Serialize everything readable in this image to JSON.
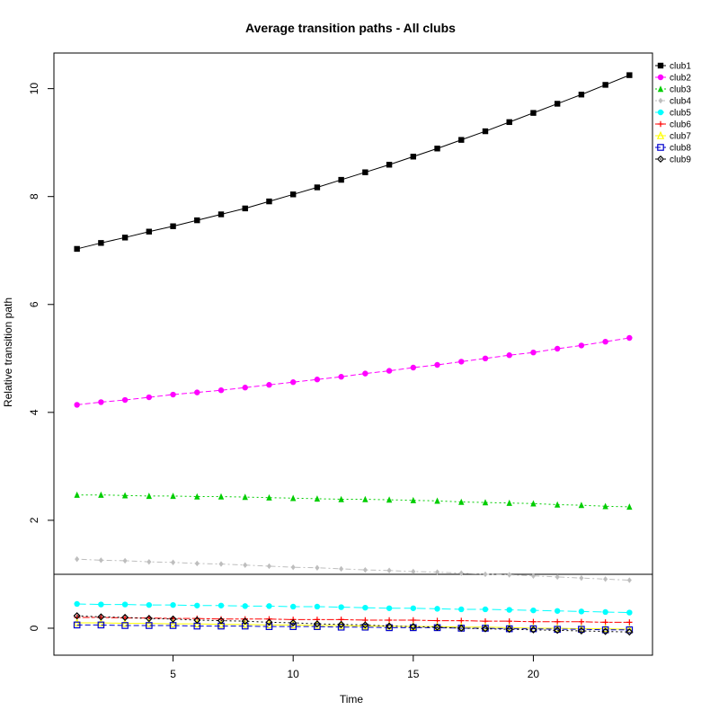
{
  "chart_data": {
    "type": "line",
    "title": "Average transition paths - All clubs",
    "xlabel": "Time",
    "ylabel": "Relative transition path",
    "x": [
      1,
      2,
      3,
      4,
      5,
      6,
      7,
      8,
      9,
      10,
      11,
      12,
      13,
      14,
      15,
      16,
      17,
      18,
      19,
      20,
      21,
      22,
      23,
      24
    ],
    "xlim": [
      0.04,
      24.96
    ],
    "ylim": [
      -0.5,
      10.66
    ],
    "xticks": [
      "5",
      "10",
      "15",
      "20"
    ],
    "yticks": [
      "0",
      "2",
      "4",
      "6",
      "8",
      "10"
    ],
    "reference_line_y": 1,
    "legend_position": "top-right",
    "series": [
      {
        "name": "club1",
        "color": "#000000",
        "marker": "square-filled",
        "dash": "solid",
        "values": [
          7.03,
          7.14,
          7.24,
          7.35,
          7.45,
          7.56,
          7.67,
          7.78,
          7.91,
          8.04,
          8.17,
          8.31,
          8.45,
          8.59,
          8.74,
          8.89,
          9.05,
          9.21,
          9.38,
          9.55,
          9.72,
          9.89,
          10.07,
          10.25
        ]
      },
      {
        "name": "club2",
        "color": "#ff00ff",
        "marker": "circle-filled",
        "dash": "dashed",
        "values": [
          4.14,
          4.19,
          4.23,
          4.28,
          4.33,
          4.37,
          4.41,
          4.46,
          4.51,
          4.56,
          4.61,
          4.66,
          4.72,
          4.77,
          4.83,
          4.88,
          4.94,
          5.0,
          5.06,
          5.11,
          5.18,
          5.24,
          5.31,
          5.38
        ]
      },
      {
        "name": "club3",
        "color": "#00cd00",
        "marker": "triangle-filled",
        "dash": "dotted",
        "values": [
          2.47,
          2.47,
          2.46,
          2.45,
          2.45,
          2.44,
          2.44,
          2.43,
          2.42,
          2.41,
          2.4,
          2.39,
          2.39,
          2.38,
          2.37,
          2.36,
          2.34,
          2.33,
          2.32,
          2.31,
          2.29,
          2.28,
          2.26,
          2.25
        ]
      },
      {
        "name": "club4",
        "color": "#bebebe",
        "marker": "diamond-filled",
        "dash": "dotdash",
        "values": [
          1.28,
          1.26,
          1.25,
          1.23,
          1.22,
          1.2,
          1.19,
          1.17,
          1.15,
          1.13,
          1.12,
          1.1,
          1.08,
          1.07,
          1.05,
          1.04,
          1.02,
          1.0,
          0.99,
          0.97,
          0.95,
          0.93,
          0.91,
          0.89
        ]
      },
      {
        "name": "club5",
        "color": "#00ffff",
        "marker": "circle-filled",
        "dash": "longdash",
        "values": [
          0.45,
          0.44,
          0.44,
          0.43,
          0.43,
          0.42,
          0.42,
          0.41,
          0.41,
          0.4,
          0.4,
          0.39,
          0.38,
          0.37,
          0.37,
          0.36,
          0.35,
          0.35,
          0.34,
          0.33,
          0.32,
          0.31,
          0.3,
          0.29
        ]
      },
      {
        "name": "club6",
        "color": "#ff0000",
        "marker": "plus",
        "dash": "twodash",
        "values": [
          0.2,
          0.2,
          0.19,
          0.19,
          0.18,
          0.18,
          0.17,
          0.17,
          0.17,
          0.16,
          0.16,
          0.16,
          0.15,
          0.15,
          0.15,
          0.14,
          0.14,
          0.13,
          0.13,
          0.12,
          0.12,
          0.12,
          0.11,
          0.11
        ]
      },
      {
        "name": "club7",
        "color": "#ffff00",
        "marker": "triangle-open",
        "dash": "solid",
        "values": [
          0.1,
          0.1,
          0.09,
          0.09,
          0.08,
          0.08,
          0.07,
          0.07,
          0.06,
          0.06,
          0.05,
          0.05,
          0.04,
          0.04,
          0.03,
          0.03,
          0.02,
          0.02,
          0.01,
          0.0,
          0.0,
          -0.01,
          -0.01,
          -0.02
        ]
      },
      {
        "name": "club8",
        "color": "#0000cd",
        "marker": "square-open",
        "dash": "dashed",
        "values": [
          0.06,
          0.06,
          0.05,
          0.05,
          0.05,
          0.04,
          0.04,
          0.04,
          0.03,
          0.03,
          0.03,
          0.02,
          0.02,
          0.01,
          0.01,
          0.01,
          0.0,
          0.0,
          -0.01,
          -0.01,
          -0.02,
          -0.02,
          -0.03,
          -0.03
        ]
      },
      {
        "name": "club9",
        "color": "#000000",
        "marker": "diamond-open",
        "dash": "dotted",
        "values": [
          0.23,
          0.21,
          0.2,
          0.18,
          0.17,
          0.15,
          0.14,
          0.13,
          0.11,
          0.1,
          0.08,
          0.07,
          0.06,
          0.04,
          0.03,
          0.02,
          0.0,
          -0.01,
          -0.02,
          -0.03,
          -0.04,
          -0.05,
          -0.06,
          -0.07
        ]
      }
    ]
  }
}
